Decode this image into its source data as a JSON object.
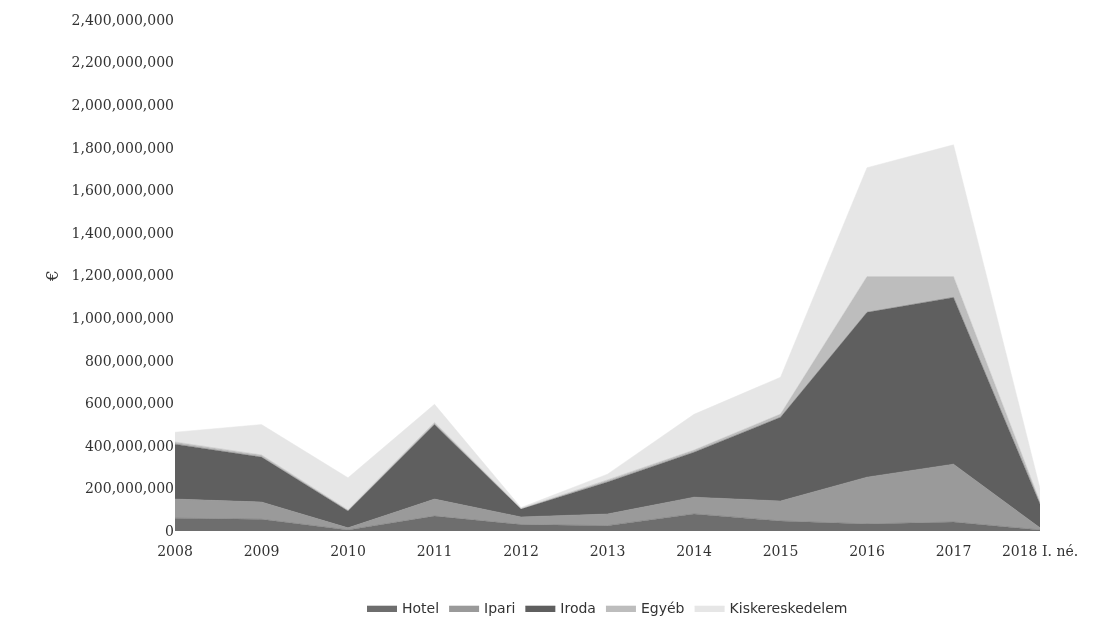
{
  "chart_data": {
    "type": "area",
    "stacked": true,
    "ylabel": "€",
    "categories": [
      "2008",
      "2009",
      "2010",
      "2011",
      "2012",
      "2013",
      "2014",
      "2015",
      "2016",
      "2017",
      "2018 I. né."
    ],
    "series": [
      {
        "name": "Hotel",
        "color": "#6e6e6e",
        "values": [
          60000000,
          55000000,
          5000000,
          70000000,
          30000000,
          25000000,
          80000000,
          47000000,
          33000000,
          42000000,
          5000000
        ]
      },
      {
        "name": "Ipari",
        "color": "#9a9a9a",
        "values": [
          90000000,
          81000000,
          10000000,
          80000000,
          36000000,
          55000000,
          79000000,
          94000000,
          220000000,
          272000000,
          10000000
        ]
      },
      {
        "name": "Iroda",
        "color": "#5f5f5f",
        "values": [
          258000000,
          211000000,
          79000000,
          350000000,
          37000000,
          150000000,
          211000000,
          393000000,
          774000000,
          783000000,
          112000000
        ]
      },
      {
        "name": "Egyéb",
        "color": "#bdbdbd",
        "values": [
          10000000,
          10000000,
          5000000,
          10000000,
          3000000,
          10000000,
          10000000,
          15000000,
          168000000,
          98000000,
          10000000
        ]
      },
      {
        "name": "Kiskereskedelem",
        "color": "#e6e6e6",
        "values": [
          46000000,
          143000000,
          151000000,
          85000000,
          4000000,
          27000000,
          168000000,
          173000000,
          511000000,
          619000000,
          63000000
        ]
      }
    ],
    "ylim": [
      0,
      2400000000
    ],
    "yticks": [
      {
        "value": 0,
        "label": "0"
      },
      {
        "value": 200000000,
        "label": "200,000,000"
      },
      {
        "value": 400000000,
        "label": "400,000,000"
      },
      {
        "value": 600000000,
        "label": "600,000,000"
      },
      {
        "value": 800000000,
        "label": "800,000,000"
      },
      {
        "value": 1000000000,
        "label": "1,000,000,000"
      },
      {
        "value": 1200000000,
        "label": "1,200,000,000"
      },
      {
        "value": 1400000000,
        "label": "1,400,000,000"
      },
      {
        "value": 1600000000,
        "label": "1,600,000,000"
      },
      {
        "value": 1800000000,
        "label": "1,800,000,000"
      },
      {
        "value": 2000000000,
        "label": "2,000,000,000"
      },
      {
        "value": 2200000000,
        "label": "2,200,000,000"
      },
      {
        "value": 2400000000,
        "label": "2,400,000,000"
      }
    ],
    "legend": "bottom"
  }
}
